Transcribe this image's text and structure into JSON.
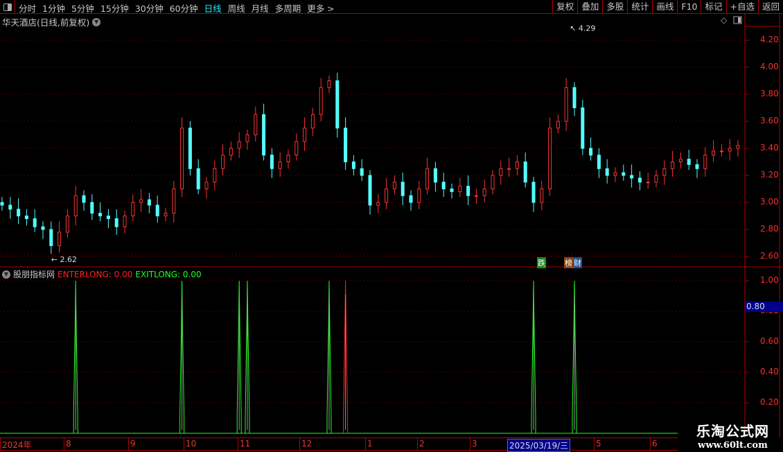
{
  "toolbar": {
    "periods": [
      "分时",
      "1分钟",
      "5分钟",
      "15分钟",
      "30分钟",
      "60分钟",
      "日线",
      "周线",
      "月线",
      "多周期",
      "更多 >"
    ],
    "active_period": "日线",
    "tools": [
      "复权",
      "叠加",
      "多股",
      "统计",
      "画线",
      "F10",
      "标记",
      "+自选",
      "返回"
    ]
  },
  "main_chart": {
    "title": "华天酒店(日线,前复权)",
    "high_label": "4.29",
    "low_label": "2.62",
    "price_axis": [
      "4.20",
      "4.00",
      "3.80",
      "3.60",
      "3.40",
      "3.20",
      "3.00",
      "2.80",
      "2.60"
    ],
    "tags": [
      {
        "text": "跌",
        "color": "#1a8a1a"
      },
      {
        "text": "榜",
        "color": "#8b4513"
      },
      {
        "text": "财",
        "color": "#1f4f8f"
      }
    ],
    "up_color": "#ff3232",
    "down_color": "#54ffff",
    "closes": [
      2.98,
      2.95,
      2.9,
      2.88,
      2.82,
      2.8,
      2.68,
      2.78,
      2.9,
      3.05,
      3.0,
      2.92,
      2.9,
      2.88,
      2.82,
      2.9,
      3.0,
      3.02,
      2.98,
      2.9,
      2.92,
      3.1,
      3.55,
      3.25,
      3.1,
      3.15,
      3.25,
      3.35,
      3.4,
      3.45,
      3.5,
      3.65,
      3.35,
      3.25,
      3.3,
      3.35,
      3.45,
      3.55,
      3.65,
      3.85,
      3.9,
      3.55,
      3.3,
      3.25,
      3.2,
      2.98,
      3.0,
      3.1,
      3.15,
      3.05,
      3.0,
      3.1,
      3.25,
      3.15,
      3.1,
      3.08,
      3.12,
      3.05,
      3.05,
      3.1,
      3.2,
      3.25,
      3.25,
      3.3,
      3.15,
      3.0,
      3.1,
      3.55,
      3.6,
      3.85,
      3.7,
      3.4,
      3.35,
      3.25,
      3.2,
      3.22,
      3.2,
      3.18,
      3.15,
      3.15,
      3.2,
      3.25,
      3.3,
      3.32,
      3.28,
      3.25,
      3.35,
      3.38,
      3.38,
      3.4,
      3.42
    ]
  },
  "indicator": {
    "name": "股朋指标网",
    "enterlong_label": "ENTERLONG: 0.00",
    "exitlong_label": "EXITLONG: 0.00",
    "enter_color": "#ff2020",
    "exit_color": "#20ff20",
    "axis": [
      "1.00",
      "0.80",
      "0.60",
      "0.40",
      "0.20"
    ],
    "current_value": "0.80",
    "signals": [
      {
        "type": "exit",
        "date_index": 9
      },
      {
        "type": "exit",
        "date_index": 22
      },
      {
        "type": "exit",
        "date_index": 29
      },
      {
        "type": "exit",
        "date_index": 30
      },
      {
        "type": "exit",
        "date_index": 40
      },
      {
        "type": "enter",
        "date_index": 42
      },
      {
        "type": "exit",
        "date_index": 65
      },
      {
        "type": "exit",
        "date_index": 70
      }
    ]
  },
  "date_axis": [
    "2024年",
    "8",
    "9",
    "10",
    "11",
    "12",
    "1",
    "2",
    "3",
    "2025/03/19/三",
    "5",
    "6"
  ],
  "watermark": {
    "name": "乐淘公式网",
    "url": "www.60lt.com"
  }
}
